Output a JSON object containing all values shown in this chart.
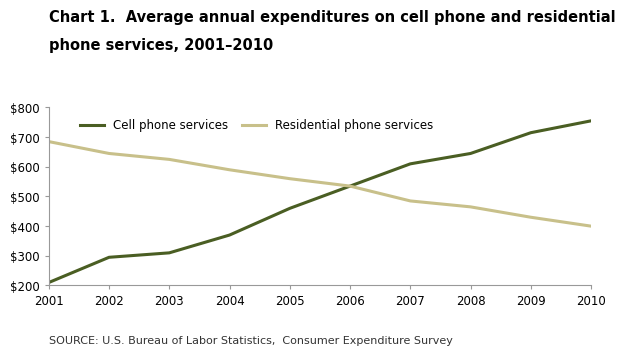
{
  "title_line1": "Chart 1.  Average annual expenditures on cell phone and residential",
  "title_line2": "phone services, 2001–2010",
  "years": [
    2001,
    2002,
    2003,
    2004,
    2005,
    2006,
    2007,
    2008,
    2009,
    2010
  ],
  "cell_phone": [
    210,
    295,
    310,
    370,
    460,
    535,
    610,
    645,
    715,
    755
  ],
  "residential": [
    685,
    645,
    625,
    590,
    560,
    535,
    485,
    465,
    430,
    400
  ],
  "cell_color": "#4a5e23",
  "residential_color": "#c8c08a",
  "cell_label": "Cell phone services",
  "residential_label": "Residential phone services",
  "ylim": [
    200,
    800
  ],
  "yticks": [
    200,
    300,
    400,
    500,
    600,
    700,
    800
  ],
  "source_text": "SOURCE: U.S. Bureau of Labor Statistics,  Consumer Expenditure Survey",
  "line_width": 2.2,
  "background_color": "#ffffff",
  "title_fontsize": 10.5,
  "tick_fontsize": 8.5,
  "legend_fontsize": 8.5,
  "source_fontsize": 8.0
}
